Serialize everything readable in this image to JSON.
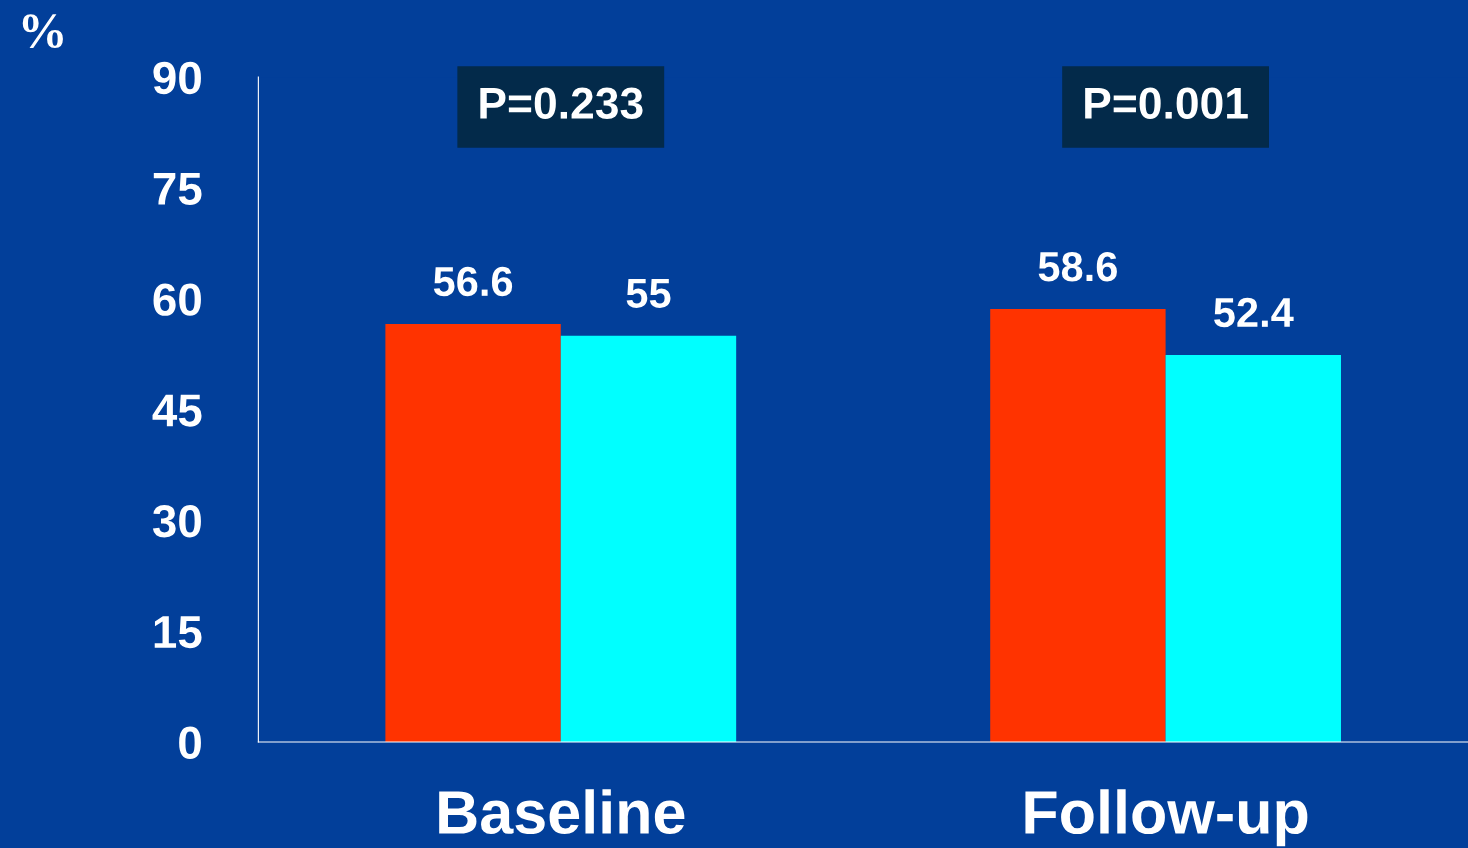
{
  "chart_data": {
    "type": "bar",
    "ylabel": "%",
    "categories": [
      "Baseline",
      "Follow-up"
    ],
    "series": [
      {
        "color": "#ff3300",
        "values": [
          56.6,
          58.6
        ]
      },
      {
        "color": "#00ffff",
        "values": [
          55,
          52.4
        ]
      }
    ],
    "ylim": [
      0,
      90
    ],
    "yticks": [
      0,
      15,
      30,
      45,
      60,
      75,
      90
    ],
    "data_labels": true,
    "grid": false,
    "legend": false,
    "annotations": [
      "P=0.233",
      "P=0.001"
    ]
  }
}
